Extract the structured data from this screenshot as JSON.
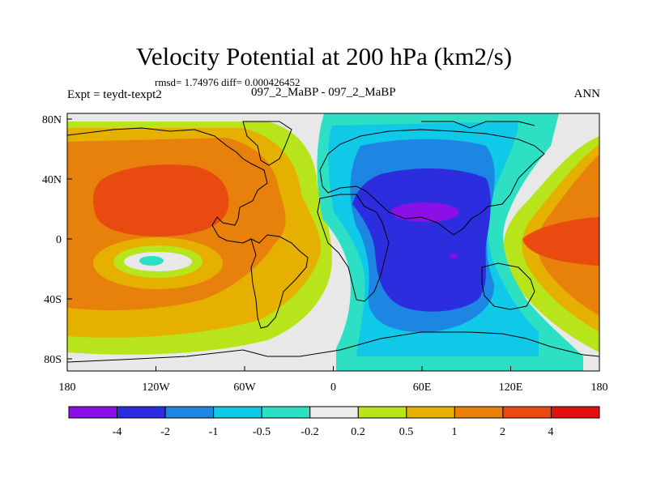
{
  "title": "Velocity Potential at 200 hPa (km2/s)",
  "stats": "rmsd= 1.74976 diff= 0.000426452",
  "left_label": "Expt = teydt-texpt2",
  "center_label": "097_2_MaBP - 097_2_MaBP",
  "right_label": "ANN",
  "axes": {
    "x_ticks": [
      "180",
      "120W",
      "60W",
      "0",
      "60E",
      "120E",
      "180"
    ],
    "y_ticks": [
      "80N",
      "40N",
      "0",
      "40S",
      "80S"
    ]
  },
  "colorbar": {
    "colors": [
      "#8a10e6",
      "#2d2de0",
      "#1d86e2",
      "#10c8e8",
      "#2ee0c3",
      "#ececec",
      "#b8e41c",
      "#e6b000",
      "#e8800c",
      "#e84a10",
      "#e01010"
    ],
    "labels": [
      "-4",
      "-2",
      "-1",
      "-0.5",
      "-0.2",
      "0.2",
      "0.5",
      "1",
      "2",
      "4"
    ]
  },
  "palette": {
    "gray": "#e8e8e8",
    "yellowgreen": "#b8e41c",
    "gold": "#e6b000",
    "orange": "#e8800c",
    "redorange": "#e84a10",
    "cyan": "#10c8e8",
    "turquoise": "#2ee0c3",
    "lightblue": "#1d86e2",
    "blue": "#2d2de0",
    "purple": "#8a10e6"
  }
}
